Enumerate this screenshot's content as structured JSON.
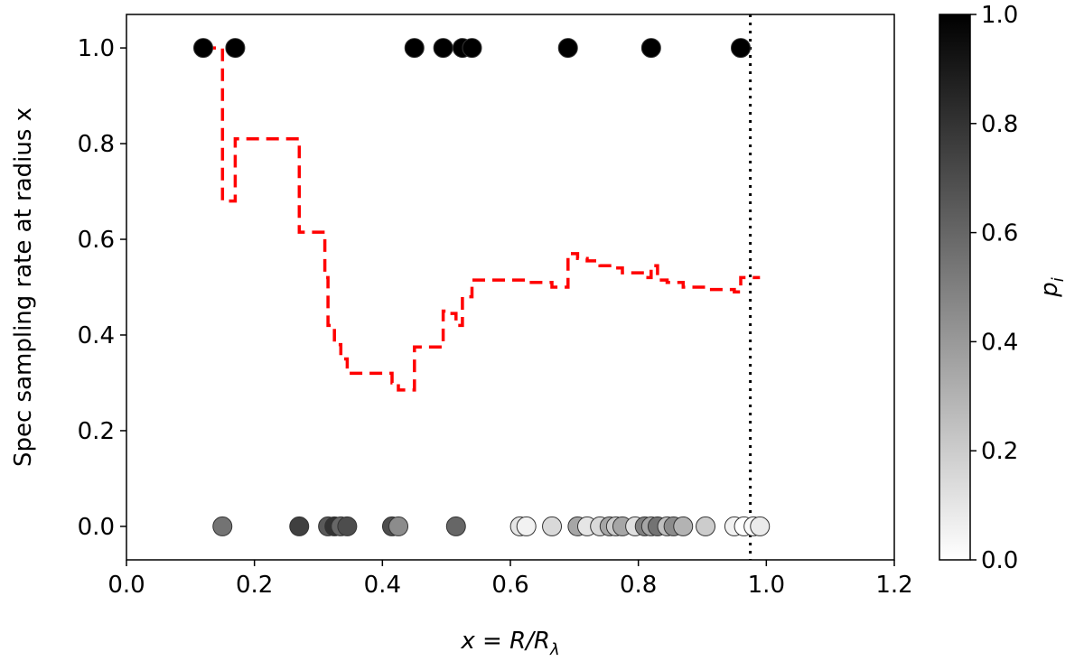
{
  "chart_data": {
    "type": "scatter",
    "xlabel_pre": "x = R/R",
    "xlabel_sub": "λ",
    "ylabel": "Spec sampling rate at radius x",
    "xlim": [
      0.0,
      1.2
    ],
    "ylim": [
      -0.07,
      1.07
    ],
    "xticks": [
      "0.0",
      "0.2",
      "0.4",
      "0.6",
      "0.8",
      "1.0",
      "1.2"
    ],
    "yticks": [
      "0.0",
      "0.2",
      "0.4",
      "0.6",
      "0.8",
      "1.0"
    ],
    "vline_x": 0.975,
    "colorbar": {
      "label": "p",
      "label_sub": "i",
      "ticks": [
        "0.0",
        "0.2",
        "0.4",
        "0.6",
        "0.8",
        "1.0"
      ],
      "range": [
        0.0,
        1.0
      ]
    },
    "points": [
      {
        "x": 0.12,
        "y": 1.0,
        "p": 1.0
      },
      {
        "x": 0.17,
        "y": 1.0,
        "p": 1.0
      },
      {
        "x": 0.45,
        "y": 1.0,
        "p": 1.0
      },
      {
        "x": 0.495,
        "y": 1.0,
        "p": 1.0
      },
      {
        "x": 0.525,
        "y": 1.0,
        "p": 1.0
      },
      {
        "x": 0.54,
        "y": 1.0,
        "p": 1.0
      },
      {
        "x": 0.69,
        "y": 1.0,
        "p": 1.0
      },
      {
        "x": 0.82,
        "y": 1.0,
        "p": 1.0
      },
      {
        "x": 0.96,
        "y": 1.0,
        "p": 1.0
      },
      {
        "x": 0.15,
        "y": 0.0,
        "p": 0.55
      },
      {
        "x": 0.27,
        "y": 0.0,
        "p": 0.75
      },
      {
        "x": 0.315,
        "y": 0.0,
        "p": 0.65
      },
      {
        "x": 0.325,
        "y": 0.0,
        "p": 0.8
      },
      {
        "x": 0.335,
        "y": 0.0,
        "p": 0.6
      },
      {
        "x": 0.345,
        "y": 0.0,
        "p": 0.7
      },
      {
        "x": 0.415,
        "y": 0.0,
        "p": 0.7
      },
      {
        "x": 0.425,
        "y": 0.0,
        "p": 0.45
      },
      {
        "x": 0.515,
        "y": 0.0,
        "p": 0.6
      },
      {
        "x": 0.615,
        "y": 0.0,
        "p": 0.1
      },
      {
        "x": 0.625,
        "y": 0.0,
        "p": 0.05
      },
      {
        "x": 0.665,
        "y": 0.0,
        "p": 0.15
      },
      {
        "x": 0.705,
        "y": 0.0,
        "p": 0.35
      },
      {
        "x": 0.72,
        "y": 0.0,
        "p": 0.1
      },
      {
        "x": 0.74,
        "y": 0.0,
        "p": 0.15
      },
      {
        "x": 0.755,
        "y": 0.0,
        "p": 0.35
      },
      {
        "x": 0.765,
        "y": 0.0,
        "p": 0.2
      },
      {
        "x": 0.775,
        "y": 0.0,
        "p": 0.35
      },
      {
        "x": 0.795,
        "y": 0.0,
        "p": 0.12
      },
      {
        "x": 0.81,
        "y": 0.0,
        "p": 0.5
      },
      {
        "x": 0.82,
        "y": 0.0,
        "p": 0.35
      },
      {
        "x": 0.83,
        "y": 0.0,
        "p": 0.55
      },
      {
        "x": 0.845,
        "y": 0.0,
        "p": 0.25
      },
      {
        "x": 0.855,
        "y": 0.0,
        "p": 0.45
      },
      {
        "x": 0.87,
        "y": 0.0,
        "p": 0.3
      },
      {
        "x": 0.905,
        "y": 0.0,
        "p": 0.2
      },
      {
        "x": 0.95,
        "y": 0.0,
        "p": 0.05
      },
      {
        "x": 0.965,
        "y": 0.0,
        "p": 0.0
      },
      {
        "x": 0.98,
        "y": 0.0,
        "p": 0.02
      },
      {
        "x": 0.99,
        "y": 0.0,
        "p": 0.08
      }
    ],
    "step_line": {
      "color": "#ff0000",
      "x": [
        0.12,
        0.15,
        0.15,
        0.17,
        0.17,
        0.27,
        0.27,
        0.31,
        0.31,
        0.315,
        0.315,
        0.325,
        0.325,
        0.335,
        0.335,
        0.345,
        0.345,
        0.415,
        0.415,
        0.425,
        0.425,
        0.45,
        0.45,
        0.495,
        0.495,
        0.5,
        0.5,
        0.515,
        0.515,
        0.525,
        0.525,
        0.54,
        0.54,
        0.615,
        0.615,
        0.625,
        0.625,
        0.665,
        0.665,
        0.69,
        0.69,
        0.705,
        0.705,
        0.72,
        0.72,
        0.74,
        0.74,
        0.765,
        0.765,
        0.775,
        0.775,
        0.795,
        0.795,
        0.81,
        0.81,
        0.82,
        0.82,
        0.83,
        0.83,
        0.845,
        0.845,
        0.87,
        0.87,
        0.905,
        0.905,
        0.95,
        0.95,
        0.96,
        0.96,
        0.99
      ],
      "y": [
        1.0,
        1.0,
        0.68,
        0.68,
        0.81,
        0.81,
        0.615,
        0.615,
        0.52,
        0.52,
        0.42,
        0.42,
        0.38,
        0.38,
        0.35,
        0.35,
        0.32,
        0.32,
        0.3,
        0.3,
        0.285,
        0.285,
        0.375,
        0.375,
        0.45,
        0.45,
        0.445,
        0.445,
        0.42,
        0.42,
        0.48,
        0.48,
        0.515,
        0.515,
        0.515,
        0.515,
        0.51,
        0.51,
        0.5,
        0.5,
        0.57,
        0.57,
        0.56,
        0.56,
        0.555,
        0.555,
        0.545,
        0.545,
        0.54,
        0.54,
        0.53,
        0.53,
        0.53,
        0.53,
        0.52,
        0.52,
        0.545,
        0.545,
        0.515,
        0.515,
        0.51,
        0.51,
        0.5,
        0.5,
        0.495,
        0.495,
        0.49,
        0.49,
        0.52,
        0.52
      ]
    }
  }
}
